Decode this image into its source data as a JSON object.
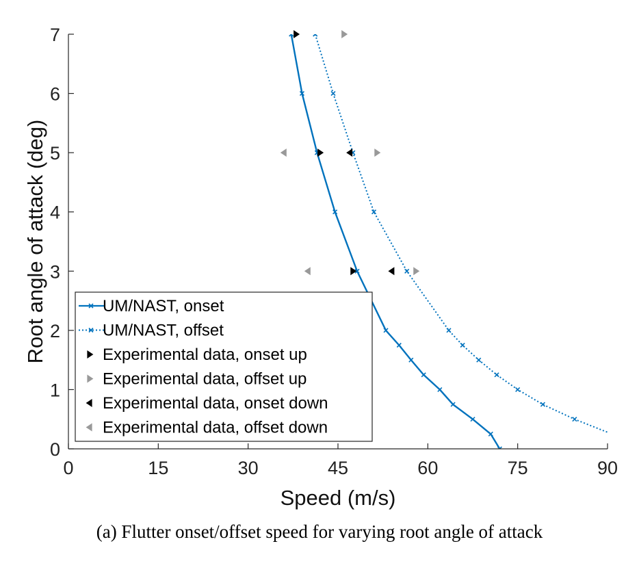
{
  "caption": "(a)  Flutter onset/offset speed for varying root angle of attack",
  "chart_data": {
    "type": "line",
    "title": "",
    "xlabel": "Speed (m/s)",
    "ylabel": "Root angle of attack (deg)",
    "xlim": [
      0,
      90
    ],
    "ylim": [
      0,
      7
    ],
    "xticks": [
      0,
      15,
      30,
      45,
      60,
      75,
      90
    ],
    "yticks": [
      0,
      1,
      2,
      3,
      4,
      5,
      6,
      7
    ],
    "grid": false,
    "legend_position": "bottom-left",
    "series": [
      {
        "name": "UM/NAST, onset",
        "kind": "line",
        "line_style": "solid",
        "color": "#0072BD",
        "points": [
          [
            37.2,
            7.0
          ],
          [
            39.0,
            6.0
          ],
          [
            41.5,
            5.0
          ],
          [
            44.5,
            4.0
          ],
          [
            48.2,
            3.0
          ],
          [
            53.0,
            2.0
          ],
          [
            55.2,
            1.75
          ],
          [
            57.2,
            1.5
          ],
          [
            59.3,
            1.25
          ],
          [
            62.0,
            1.0
          ],
          [
            64.2,
            0.75
          ],
          [
            67.5,
            0.5
          ],
          [
            70.5,
            0.25
          ],
          [
            72.0,
            0.0
          ]
        ]
      },
      {
        "name": "UM/NAST, offset",
        "kind": "line",
        "line_style": "dotted",
        "color": "#0072BD",
        "points": [
          [
            41.2,
            7.0
          ],
          [
            44.2,
            6.0
          ],
          [
            47.5,
            5.0
          ],
          [
            51.0,
            4.0
          ],
          [
            56.5,
            3.0
          ],
          [
            63.5,
            2.0
          ],
          [
            65.8,
            1.75
          ],
          [
            68.5,
            1.5
          ],
          [
            71.5,
            1.25
          ],
          [
            75.0,
            1.0
          ],
          [
            79.2,
            0.75
          ],
          [
            84.5,
            0.5
          ],
          [
            90.0,
            0.28
          ]
        ]
      },
      {
        "name": "Experimental data, onset up",
        "kind": "marker",
        "marker": "triangle-right",
        "color": "#000000",
        "points": [
          [
            38.0,
            7.0
          ],
          [
            42.0,
            5.0
          ],
          [
            47.5,
            3.0
          ]
        ]
      },
      {
        "name": "Experimental data, offset up",
        "kind": "marker",
        "marker": "triangle-right",
        "color": "#999999",
        "points": [
          [
            46.0,
            7.0
          ],
          [
            51.5,
            5.0
          ],
          [
            58.0,
            3.0
          ]
        ]
      },
      {
        "name": "Experimental data, onset down",
        "kind": "marker",
        "marker": "triangle-left",
        "color": "#000000",
        "points": [
          [
            47.0,
            5.0
          ],
          [
            54.0,
            3.0
          ]
        ]
      },
      {
        "name": "Experimental data, offset down",
        "kind": "marker",
        "marker": "triangle-left",
        "color": "#999999",
        "points": [
          [
            36.0,
            5.0
          ],
          [
            40.0,
            3.0
          ]
        ]
      }
    ]
  }
}
